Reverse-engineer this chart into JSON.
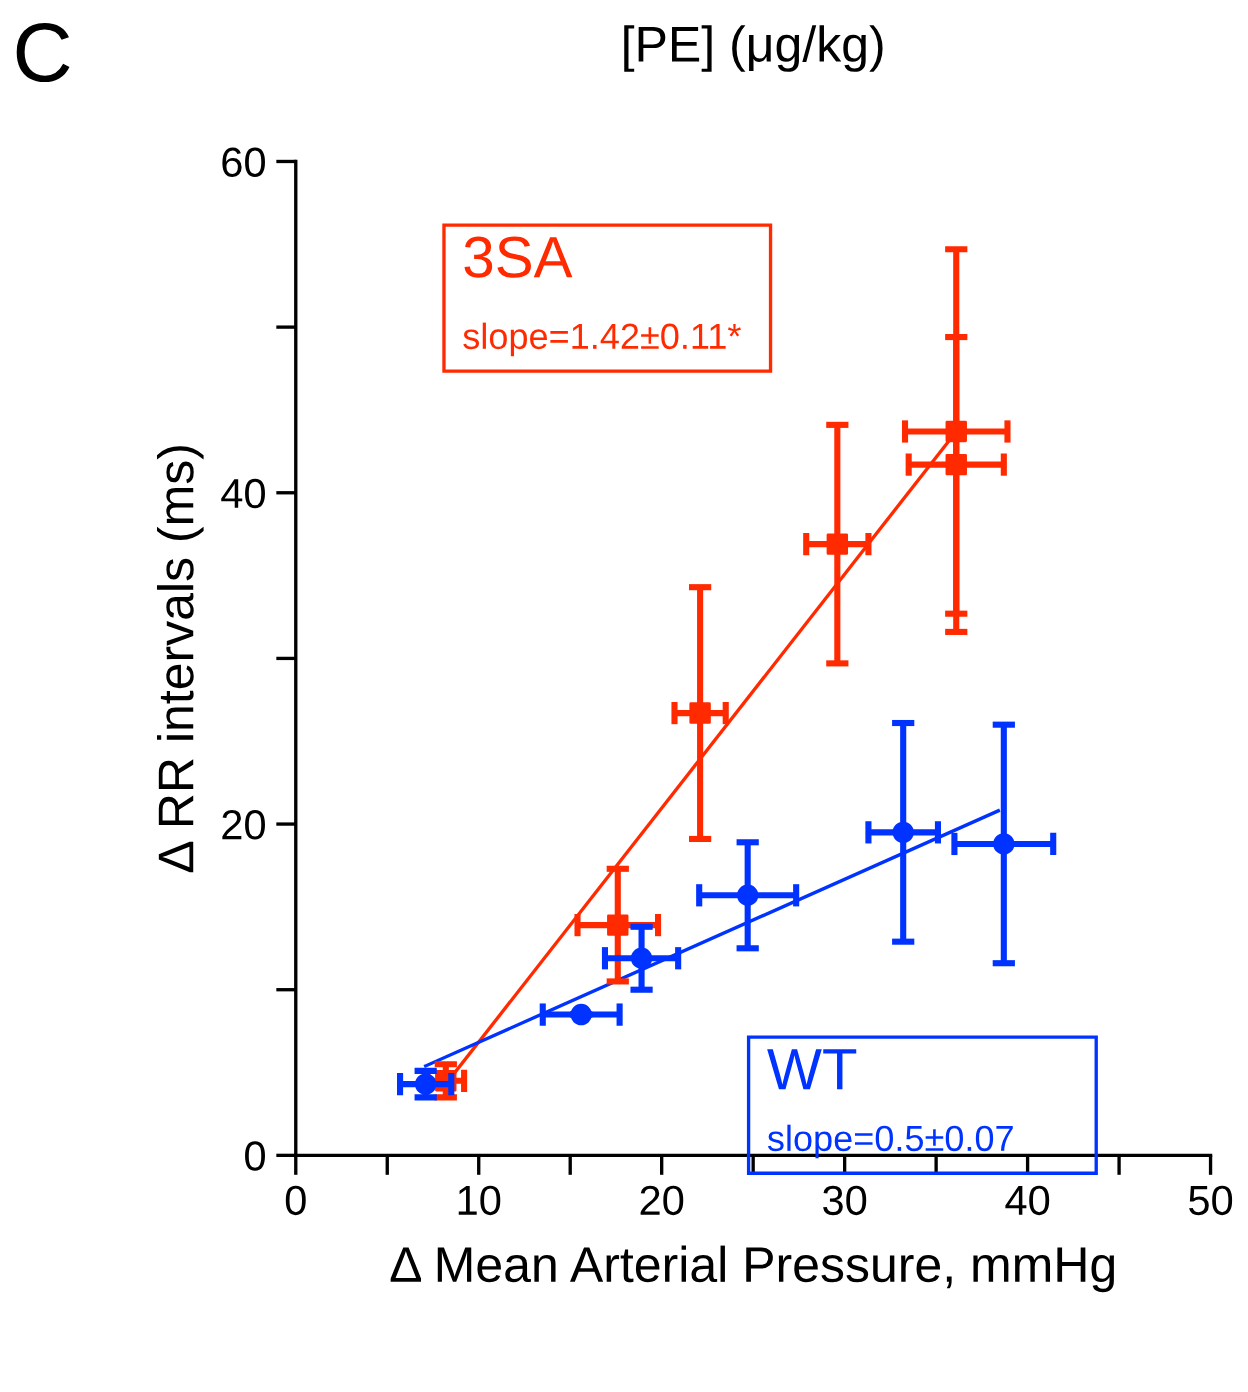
{
  "chart_data": {
    "type": "scatter",
    "title": "[PE] (μg/kg)",
    "xlabel": "Δ Mean Arterial Pressure, mmHg",
    "ylabel": "Δ RR intervals (ms)",
    "annotations": [
      "slope=1.42±0.11*",
      "slope=0.5±0.07",
      "C"
    ],
    "xlim": [
      0,
      50
    ],
    "ylim": [
      0,
      60
    ],
    "xticks": [
      0,
      {
        "value": 5,
        "label": null
      },
      10,
      {
        "value": 15,
        "label": null
      },
      20,
      {
        "value": 25,
        "label": null
      },
      30,
      {
        "value": 35,
        "label": null
      },
      40,
      {
        "value": 45,
        "label": null
      },
      50
    ],
    "yticks": [
      0,
      {
        "value": 10,
        "label": null
      },
      20,
      {
        "value": 30,
        "label": null
      },
      40,
      {
        "value": 50,
        "label": null
      },
      60
    ],
    "grid": false,
    "series": [
      {
        "name": "3SA",
        "color": "#ff2a00",
        "marker": "square",
        "x": [
          8.2,
          17.6,
          22.1,
          29.6,
          36.1,
          36.1
        ],
        "values": [
          4.5,
          13.9,
          26.7,
          36.9,
          43.7,
          41.7
        ],
        "errors": [
          1.0,
          3.4,
          7.6,
          7.2,
          11.0,
          [
            31.6,
            49.4
          ]
        ],
        "xerrors": [
          1.0,
          2.2,
          1.4,
          1.7,
          2.8,
          2.6
        ]
      },
      {
        "name": "WT",
        "color": "#0033ff",
        "marker": "circle",
        "x": [
          7.1,
          15.6,
          18.9,
          24.7,
          33.2,
          38.7
        ],
        "values": [
          4.3,
          8.5,
          11.9,
          15.7,
          19.5,
          18.8
        ],
        "errors": [
          0.8,
          null,
          1.9,
          3.2,
          6.6,
          7.2
        ],
        "xerrors": [
          1.4,
          2.1,
          2.0,
          2.65,
          1.9,
          2.7
        ]
      },
      {
        "type": "line",
        "color": "#ff2a00",
        "x": [
          8.2,
          36.1
        ],
        "values": [
          4.3,
          43.7
        ]
      },
      {
        "type": "line",
        "color": "#0033ff",
        "x": [
          7.1,
          38.4
        ],
        "values": [
          5.4,
          20.8
        ]
      }
    ]
  }
}
